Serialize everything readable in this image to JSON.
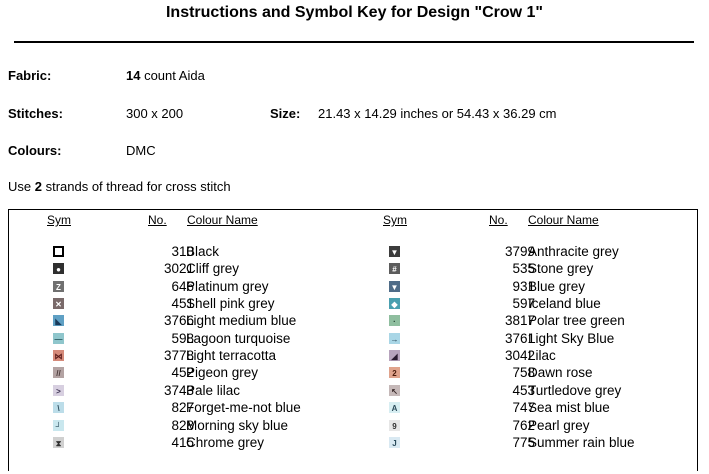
{
  "title": "Instructions and Symbol Key for Design \"Crow 1\"",
  "fabric": {
    "label": "Fabric:",
    "count": "14",
    "rest": " count Aida"
  },
  "stitches": {
    "label": "Stitches:",
    "value": "300 x 200"
  },
  "size": {
    "label": "Size:",
    "value": "21.43 x 14.29 inches or 54.43 x 36.29 cm"
  },
  "colours": {
    "label": "Colours:",
    "value": "DMC"
  },
  "note": {
    "pre": "Use ",
    "strands": "2",
    "post": " strands of thread for cross stitch"
  },
  "headers": {
    "sym": "Sym",
    "no": "No.",
    "name": "Colour Name"
  },
  "left": [
    {
      "no": "310",
      "name": "Black",
      "color": "#ffffff",
      "border": "#000000",
      "glyph": "",
      "fg": "#000000"
    },
    {
      "no": "3021",
      "name": "Cliff grey",
      "color": "#2f2f2f",
      "border": "#2f2f2f",
      "glyph": "●",
      "fg": "#ffffff"
    },
    {
      "no": "646",
      "name": "Platinum grey",
      "color": "#707070",
      "border": "#707070",
      "glyph": "Z",
      "fg": "#ffffff"
    },
    {
      "no": "451",
      "name": "Shell pink grey",
      "color": "#7a6a6a",
      "border": "#7a6a6a",
      "glyph": "✕",
      "fg": "#ffffff"
    },
    {
      "no": "3766",
      "name": "Light medium blue",
      "color": "#5fa0c4",
      "border": "#5fa0c4",
      "glyph": "◣",
      "fg": "#1a3a5a"
    },
    {
      "no": "598",
      "name": "Lagoon turquoise",
      "color": "#8fc6cc",
      "border": "#8fc6cc",
      "glyph": "—",
      "fg": "#2a5a60"
    },
    {
      "no": "3778",
      "name": "Light terracotta",
      "color": "#d58a7a",
      "border": "#d58a7a",
      "glyph": "⋈",
      "fg": "#5a1a1a"
    },
    {
      "no": "452",
      "name": "Pigeon grey",
      "color": "#b3a3a3",
      "border": "#b3a3a3",
      "glyph": "//",
      "fg": "#4a3a3a"
    },
    {
      "no": "3743",
      "name": "Pale lilac",
      "color": "#d7cfe0",
      "border": "#d7cfe0",
      "glyph": ">",
      "fg": "#3a3050"
    },
    {
      "no": "827",
      "name": "Forget-me-not blue",
      "color": "#bcdde9",
      "border": "#bcdde9",
      "glyph": "\\",
      "fg": "#2a4a5a"
    },
    {
      "no": "828",
      "name": "Morning sky blue",
      "color": "#c9e7ee",
      "border": "#c9e7ee",
      "glyph": "┘",
      "fg": "#2a4a5a"
    },
    {
      "no": "415",
      "name": "Chrome grey",
      "color": "#d0d0d0",
      "border": "#d0d0d0",
      "glyph": "⧗",
      "fg": "#303030"
    }
  ],
  "right": [
    {
      "no": "3799",
      "name": "Anthracite grey",
      "color": "#3c3c3c",
      "border": "#3c3c3c",
      "glyph": "▼",
      "fg": "#ffffff"
    },
    {
      "no": "535",
      "name": "Stone grey",
      "color": "#5c5c5c",
      "border": "#5c5c5c",
      "glyph": "#",
      "fg": "#ffffff"
    },
    {
      "no": "931",
      "name": "Blue grey",
      "color": "#4f6c88",
      "border": "#4f6c88",
      "glyph": "▼",
      "fg": "#ffffff"
    },
    {
      "no": "597",
      "name": "Iceland blue",
      "color": "#4aa0b0",
      "border": "#4aa0b0",
      "glyph": "◆",
      "fg": "#ffffff"
    },
    {
      "no": "3817",
      "name": "Polar tree green",
      "color": "#8fbe9f",
      "border": "#8fbe9f",
      "glyph": "·",
      "fg": "#1a3a2a"
    },
    {
      "no": "3761",
      "name": "Light Sky Blue",
      "color": "#a9d6e6",
      "border": "#a9d6e6",
      "glyph": "→",
      "fg": "#1a3a4a"
    },
    {
      "no": "3042",
      "name": "Lilac",
      "color": "#b7a3bd",
      "border": "#b7a3bd",
      "glyph": "◢",
      "fg": "#2a1a30"
    },
    {
      "no": "758",
      "name": "Dawn rose",
      "color": "#e0a38c",
      "border": "#e0a38c",
      "glyph": "2",
      "fg": "#4a1a0a"
    },
    {
      "no": "453",
      "name": "Turtledove grey",
      "color": "#c5b8b8",
      "border": "#c5b8b8",
      "glyph": "↖",
      "fg": "#3a2a2a"
    },
    {
      "no": "747",
      "name": "Sea mist blue",
      "color": "#d7eef2",
      "border": "#d7eef2",
      "glyph": "A",
      "fg": "#2a4a5a"
    },
    {
      "no": "762",
      "name": "Pearl grey",
      "color": "#e6e6e6",
      "border": "#e6e6e6",
      "glyph": "9",
      "fg": "#303030"
    },
    {
      "no": "775",
      "name": "Summer rain blue",
      "color": "#d9e9f2",
      "border": "#d9e9f2",
      "glyph": "J",
      "fg": "#2a4a5a"
    }
  ]
}
